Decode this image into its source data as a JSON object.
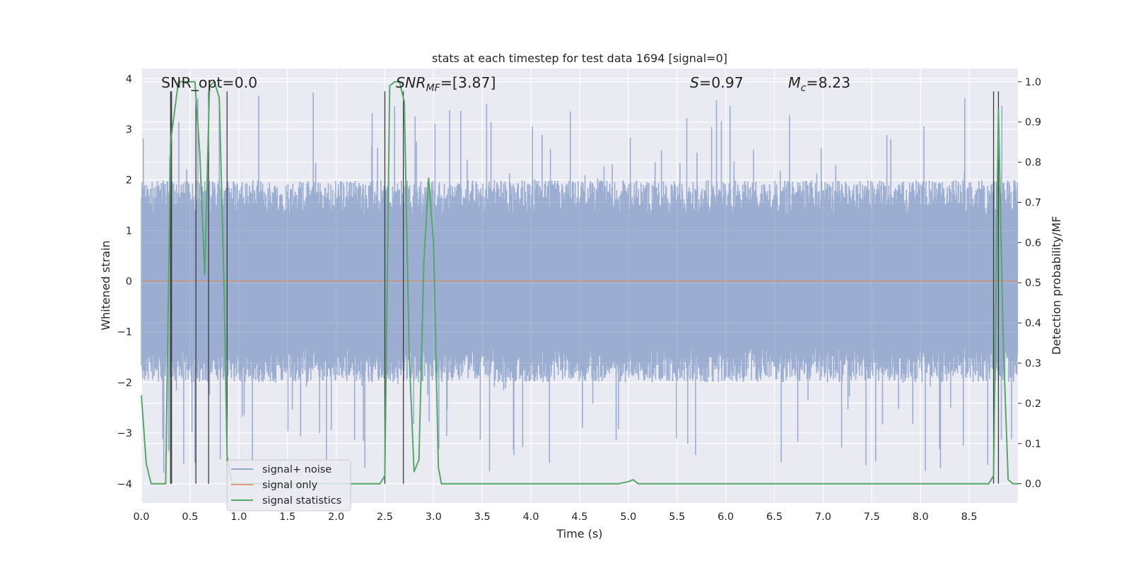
{
  "chart_data": {
    "type": "line",
    "title": "stats at each timestep for test data 1694 [signal=0]",
    "xlabel": "Time (s)",
    "ylabel_left": "Whitened strain",
    "ylabel_right": "Detection probability/MF",
    "xlim": [
      0,
      9.0
    ],
    "ylim_left": [
      -4.38,
      4.2
    ],
    "ylim_right": [
      -0.048,
      1.033
    ],
    "x_ticks": [
      0.0,
      0.5,
      1.0,
      1.5,
      2.0,
      2.5,
      3.0,
      3.5,
      4.0,
      4.5,
      5.0,
      5.5,
      6.0,
      6.5,
      7.0,
      7.5,
      8.0,
      8.5
    ],
    "x_tick_labels": [
      "0.0",
      "0.5",
      "1.0",
      "1.5",
      "2.0",
      "2.5",
      "3.0",
      "3.5",
      "4.0",
      "4.5",
      "5.0",
      "5.5",
      "6.0",
      "6.5",
      "7.0",
      "7.5",
      "8.0",
      "8.5"
    ],
    "y_left_ticks": [
      4,
      3,
      2,
      1,
      0,
      -1,
      -2,
      -3,
      -4
    ],
    "y_left_tick_labels": [
      "4",
      "3",
      "2",
      "1",
      "0",
      "−1",
      "−2",
      "−3",
      "−4"
    ],
    "y_right_ticks": [
      1.0,
      0.9,
      0.8,
      0.7,
      0.6,
      0.5,
      0.4,
      0.3,
      0.2,
      0.1,
      0.0
    ],
    "y_right_tick_labels": [
      "1.0",
      "0.9",
      "0.8",
      "0.7",
      "0.6",
      "0.5",
      "0.4",
      "0.3",
      "0.2",
      "0.1",
      "0.0"
    ],
    "grid": true,
    "legend_position": "lower-left",
    "legend": [
      {
        "label": "signal+ noise",
        "color": "#4c72b0"
      },
      {
        "label": "signal only",
        "color": "#dd8452"
      },
      {
        "label": "signal statistics",
        "color": "#55a868"
      }
    ],
    "annotations": {
      "snr_opt": "SNR_opt=0.0",
      "snr_mf_symbol": "SNR",
      "snr_mf_sub": "MF",
      "snr_mf_value": "=[3.87]",
      "s_symbol": "S",
      "s_value": "=0.97",
      "mc_symbol": "M",
      "mc_sub": "c",
      "mc_value": "=8.23"
    },
    "series": [
      {
        "name": "signal+ noise",
        "kind": "noise",
        "color": "#4c72b0",
        "n_points": 1800,
        "typical_max": 2.0,
        "extreme_max": 3.8
      },
      {
        "name": "signal only",
        "kind": "constant",
        "color": "#dd8452",
        "value": 0
      },
      {
        "name": "signal statistics",
        "kind": "line",
        "axis": "right",
        "color": "#55a868",
        "x": [
          0.0,
          0.05,
          0.1,
          0.25,
          0.3,
          0.38,
          0.45,
          0.55,
          0.6,
          0.65,
          0.7,
          0.75,
          0.8,
          0.85,
          0.88,
          0.93,
          1.0,
          1.05,
          2.45,
          2.5,
          2.55,
          2.6,
          2.65,
          2.7,
          2.75,
          2.8,
          2.85,
          2.9,
          2.95,
          3.0,
          3.05,
          3.08,
          3.13,
          3.5,
          4.0,
          4.5,
          4.9,
          5.0,
          5.05,
          5.1,
          5.2,
          6.0,
          7.0,
          8.0,
          8.3,
          8.7,
          8.75,
          8.8,
          8.85,
          8.9,
          8.95,
          9.0
        ],
        "y": [
          0.22,
          0.05,
          0.0,
          0.0,
          0.85,
          1.0,
          1.0,
          1.0,
          0.82,
          0.52,
          0.99,
          1.0,
          0.96,
          0.48,
          0.07,
          0.0,
          0.0,
          0.0,
          0.0,
          0.02,
          0.99,
          1.0,
          1.0,
          0.95,
          0.32,
          0.03,
          0.06,
          0.55,
          0.76,
          0.6,
          0.04,
          0.0,
          0.0,
          0.0,
          0.0,
          0.0,
          0.0,
          0.005,
          0.01,
          0.0,
          0.0,
          0.0,
          0.0,
          0.0,
          0.0,
          0.0,
          0.02,
          0.93,
          0.35,
          0.01,
          0.0,
          0.0
        ]
      },
      {
        "name": "markers",
        "kind": "vlines",
        "color": "#3b3b3b",
        "x": [
          0.3,
          0.31,
          0.56,
          0.69,
          0.88,
          2.5,
          2.69,
          8.75,
          8.8
        ],
        "y_top": 3.75
      }
    ]
  }
}
